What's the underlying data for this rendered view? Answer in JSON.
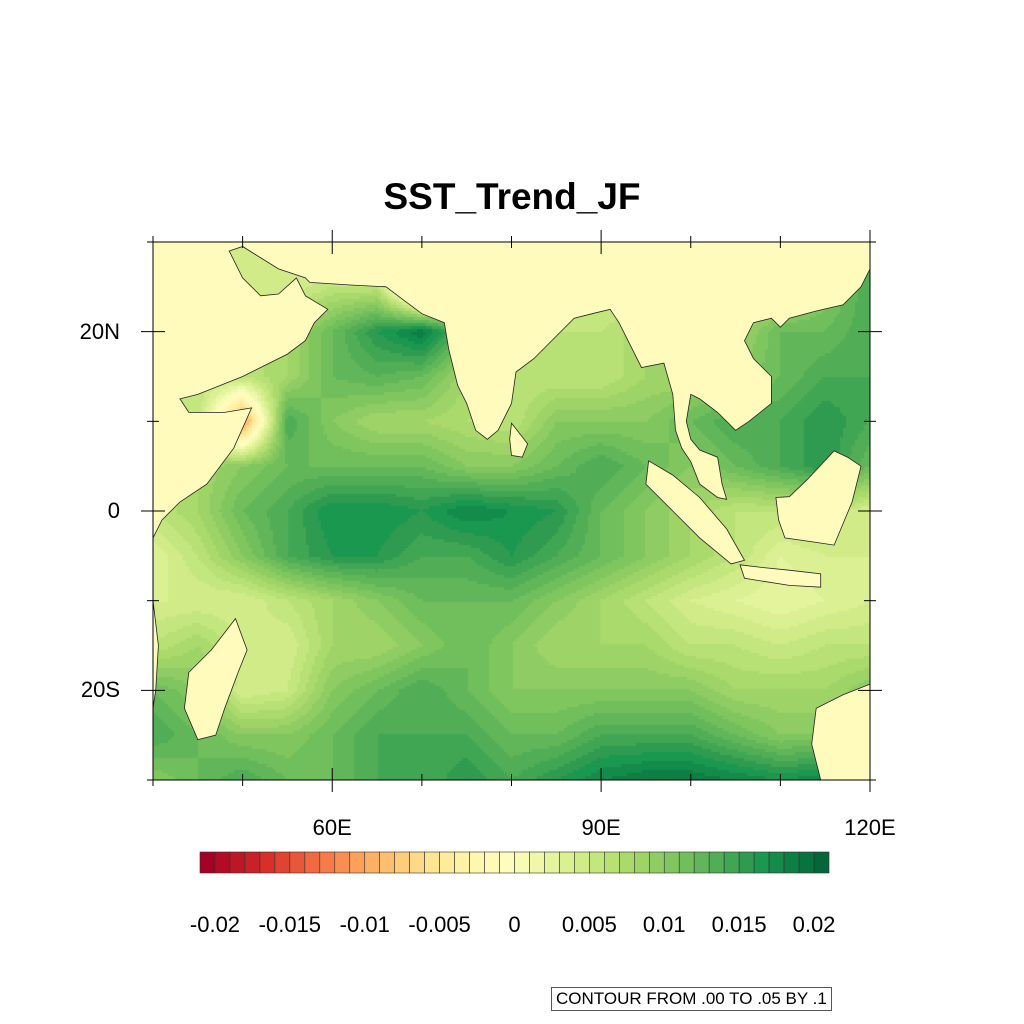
{
  "title": "SST_Trend_JF",
  "chart_data": {
    "type": "heatmap",
    "projection": "cylindrical-equidistant map",
    "title": "SST_Trend_JF",
    "lon_range": [
      40,
      120
    ],
    "lat_range": [
      -30,
      30
    ],
    "x_ticks": [
      {
        "value": 60,
        "label": "60E"
      },
      {
        "value": 90,
        "label": "90E"
      },
      {
        "value": 120,
        "label": "120E"
      }
    ],
    "y_ticks": [
      {
        "value": 20,
        "label": "20N"
      },
      {
        "value": 0,
        "label": "0"
      },
      {
        "value": -20,
        "label": "20S"
      }
    ],
    "grid_lon": [
      40,
      45,
      50,
      55,
      60,
      65,
      70,
      75,
      80,
      85,
      90,
      95,
      100,
      105,
      110,
      115,
      120
    ],
    "grid_lat": [
      30,
      25,
      20,
      15,
      10,
      5,
      0,
      -5,
      -10,
      -15,
      -20,
      -25,
      -30
    ],
    "values": [
      [
        0.004,
        0.004,
        0.004,
        0.004,
        0.004,
        0.004,
        0.004,
        0.004,
        0.004,
        0.004,
        0.004,
        0.004,
        0.004,
        0.004,
        0.004,
        0.008,
        0.012
      ],
      [
        0.004,
        0.004,
        0.004,
        0.004,
        0.006,
        0.006,
        -0.01,
        0.004,
        0.006,
        0.006,
        0.004,
        0.004,
        0.004,
        0.004,
        0.006,
        0.01,
        0.014
      ],
      [
        0.004,
        0.004,
        0.006,
        0.008,
        0.012,
        0.016,
        0.019,
        0.012,
        0.01,
        0.006,
        0.006,
        0.008,
        0.008,
        0.008,
        0.012,
        0.012,
        0.014
      ],
      [
        0.004,
        0.006,
        0.006,
        0.008,
        0.012,
        0.013,
        0.012,
        0.008,
        0.006,
        0.006,
        0.006,
        0.008,
        0.008,
        0.01,
        0.012,
        0.014,
        0.014
      ],
      [
        0.004,
        0.006,
        -0.012,
        0.014,
        0.01,
        0.008,
        0.008,
        0.007,
        0.006,
        0.01,
        0.01,
        0.01,
        0.012,
        0.014,
        0.014,
        0.016,
        0.014
      ],
      [
        0.004,
        0.008,
        0.01,
        0.012,
        0.012,
        0.012,
        0.012,
        0.01,
        0.01,
        0.012,
        0.014,
        0.012,
        0.01,
        0.012,
        0.014,
        0.016,
        0.012
      ],
      [
        0.006,
        0.008,
        0.012,
        0.014,
        0.017,
        0.017,
        0.016,
        0.018,
        0.017,
        0.016,
        0.012,
        0.01,
        0.008,
        0.006,
        0.006,
        0.006,
        0.004
      ],
      [
        0.003,
        0.006,
        0.01,
        0.014,
        0.016,
        0.016,
        0.014,
        0.014,
        0.016,
        0.014,
        0.012,
        0.01,
        0.008,
        0.006,
        0.003,
        0.004,
        0.004
      ],
      [
        0.004,
        0.004,
        0.004,
        0.006,
        0.008,
        0.01,
        0.012,
        0.012,
        0.012,
        0.01,
        0.008,
        0.006,
        0.004,
        0.003,
        0.002,
        0.003,
        0.004
      ],
      [
        0.006,
        0.008,
        0.005,
        0.004,
        0.008,
        0.008,
        0.01,
        0.012,
        0.01,
        0.008,
        0.008,
        0.008,
        0.006,
        0.006,
        0.005,
        0.006,
        0.006
      ],
      [
        0.012,
        0.01,
        0.004,
        0.005,
        0.01,
        0.012,
        0.014,
        0.012,
        0.01,
        0.01,
        0.01,
        0.01,
        0.01,
        0.008,
        0.008,
        0.008,
        0.01
      ],
      [
        0.014,
        0.012,
        0.01,
        0.01,
        0.012,
        0.014,
        0.014,
        0.014,
        0.012,
        0.012,
        0.014,
        0.014,
        0.014,
        0.012,
        0.01,
        0.01,
        0.01
      ],
      [
        0.01,
        0.012,
        0.014,
        0.012,
        0.012,
        0.014,
        0.014,
        0.016,
        0.014,
        0.016,
        0.018,
        0.019,
        0.019,
        0.018,
        0.017,
        0.018,
        0.01
      ]
    ],
    "levels": {
      "min": -0.02,
      "max": 0.02,
      "step": 0.001
    },
    "colorbar_labels": [
      "-0.02",
      "-0.015",
      "-0.01",
      "-0.005",
      "0",
      "0.005",
      "0.01",
      "0.015",
      "0.02"
    ],
    "colorbar_label_values": [
      -0.02,
      -0.015,
      -0.01,
      -0.005,
      0,
      0.005,
      0.01,
      0.015,
      0.02
    ],
    "palette": [
      "#a50026",
      "#b10b26",
      "#bd1726",
      "#c82129",
      "#d73027",
      "#e04430",
      "#e95639",
      "#f26841",
      "#f67b49",
      "#f98e52",
      "#fca05b",
      "#fdb063",
      "#fdbf6f",
      "#fecc7b",
      "#fed988",
      "#fee594",
      "#ffeb9c",
      "#fff1a6",
      "#fff6b0",
      "#fffab8",
      "#fffdbe",
      "#f7fcb4",
      "#eef8a8",
      "#e4f49d",
      "#daf093",
      "#d0eb88",
      "#c4e67e",
      "#b7e075",
      "#aad96c",
      "#9dd367",
      "#8fcc63",
      "#80c65f",
      "#71be5c",
      "#61b659",
      "#51ae56",
      "#41a653",
      "#2e9b50",
      "#1a9850",
      "#138b4a",
      "#0e7f44",
      "#097340",
      "#04663a"
    ],
    "land_color": "#fffbbd",
    "colorbar_placement": "bottom"
  },
  "contour_info": "CONTOUR FROM .00 TO .05 BY .1"
}
